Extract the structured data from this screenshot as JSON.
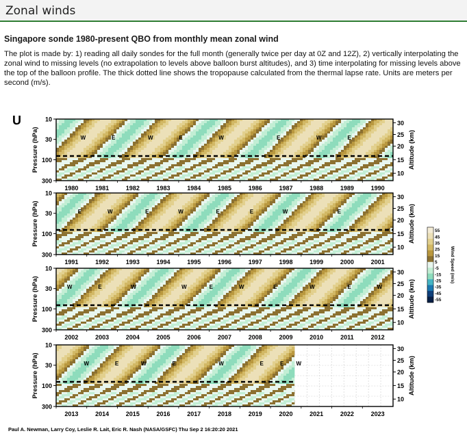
{
  "header": {
    "title": "Zonal winds"
  },
  "subtitle": "Singapore sonde 1980-present QBO from monthly mean zonal wind",
  "description": "The plot is made by: 1) reading all daily sondes for the full month (generally twice per day at 0Z and 12Z), 2) vertically interpolating the zonal wind to missing levels (no extrapolation to levels above balloon burst altitudes), and 3) time interpolating for missing levels above the top of the balloon profile. The thick dotted line shows the tropopause calculated from the thermal lapse rate. Units are meters per second (m/s).",
  "chart_data": {
    "type": "heatmap",
    "panel_letter": "U",
    "ylabel_left": "Pressure (hPa)",
    "ylabel_right": "Altitude (km)",
    "pressure_ticks": [
      "10",
      "30",
      "100",
      "300"
    ],
    "altitude_ticks": [
      "30",
      "25",
      "20",
      "15",
      "10"
    ],
    "panels": [
      {
        "years": [
          "1980",
          "1981",
          "1982",
          "1983",
          "1984",
          "1985",
          "1986",
          "1987",
          "1988",
          "1989",
          "1990"
        ],
        "labels": [
          {
            "t": "W",
            "x": 0.08
          },
          {
            "t": "E",
            "x": 0.17
          },
          {
            "t": "W",
            "x": 0.28
          },
          {
            "t": "E",
            "x": 0.37
          },
          {
            "t": "W",
            "x": 0.49
          },
          {
            "t": "E",
            "x": 0.66
          },
          {
            "t": "W",
            "x": 0.78
          },
          {
            "t": "E",
            "x": 0.87
          }
        ]
      },
      {
        "years": [
          "1991",
          "1992",
          "1993",
          "1994",
          "1995",
          "1996",
          "1997",
          "1998",
          "1999",
          "2000",
          "2001"
        ],
        "labels": [
          {
            "t": "E",
            "x": 0.07
          },
          {
            "t": "W",
            "x": 0.16
          },
          {
            "t": "E",
            "x": 0.27
          },
          {
            "t": "W",
            "x": 0.37
          },
          {
            "t": "E",
            "x": 0.48
          },
          {
            "t": "E",
            "x": 0.58
          },
          {
            "t": "W",
            "x": 0.68
          },
          {
            "t": "E",
            "x": 0.84
          }
        ]
      },
      {
        "years": [
          "2002",
          "2003",
          "2004",
          "2005",
          "2006",
          "2007",
          "2008",
          "2009",
          "2010",
          "2011",
          "2012"
        ],
        "labels": [
          {
            "t": "W",
            "x": 0.04
          },
          {
            "t": "E",
            "x": 0.13
          },
          {
            "t": "W",
            "x": 0.23
          },
          {
            "t": "W",
            "x": 0.38
          },
          {
            "t": "E",
            "x": 0.46
          },
          {
            "t": "W",
            "x": 0.55
          },
          {
            "t": "E",
            "x": 0.65
          },
          {
            "t": "W",
            "x": 0.76
          },
          {
            "t": "E",
            "x": 0.87
          },
          {
            "t": "W",
            "x": 0.96
          }
        ]
      },
      {
        "years": [
          "2013",
          "2014",
          "2015",
          "2016",
          "2017",
          "2018",
          "2019",
          "2020",
          "2021",
          "2022",
          "2023"
        ],
        "labels": [
          {
            "t": "W",
            "x": 0.09
          },
          {
            "t": "E",
            "x": 0.18
          },
          {
            "t": "W",
            "x": 0.26
          },
          {
            "t": "E",
            "x": 0.35
          },
          {
            "t": "W",
            "x": 0.49
          },
          {
            "t": "E",
            "x": 0.61
          },
          {
            "t": "E",
            "x": 0.67
          },
          {
            "t": "W",
            "x": 0.72
          }
        ]
      }
    ],
    "colorbar": {
      "label": "Wind Speed (m/s)",
      "ticks": [
        "55",
        "45",
        "35",
        "25",
        "15",
        "5",
        "-5",
        "-15",
        "-25",
        "-35",
        "-45",
        "-55"
      ],
      "colors": [
        "#f4ecd6",
        "#ece0b8",
        "#e2d08e",
        "#d2b865",
        "#b9983f",
        "#8c7131",
        "#e8f6ee",
        "#c2eed4",
        "#8edcbc",
        "#45b4c4",
        "#1b78b0",
        "#0f3f7a",
        "#071f46"
      ]
    },
    "data_end_fraction_last_panel": 0.708,
    "credit": "Paul A. Newman, Larry Coy, Leslie R. Lait, Eric R. Nash (NASA/GSFC) Thu Sep  2 16:20:20 2021"
  }
}
